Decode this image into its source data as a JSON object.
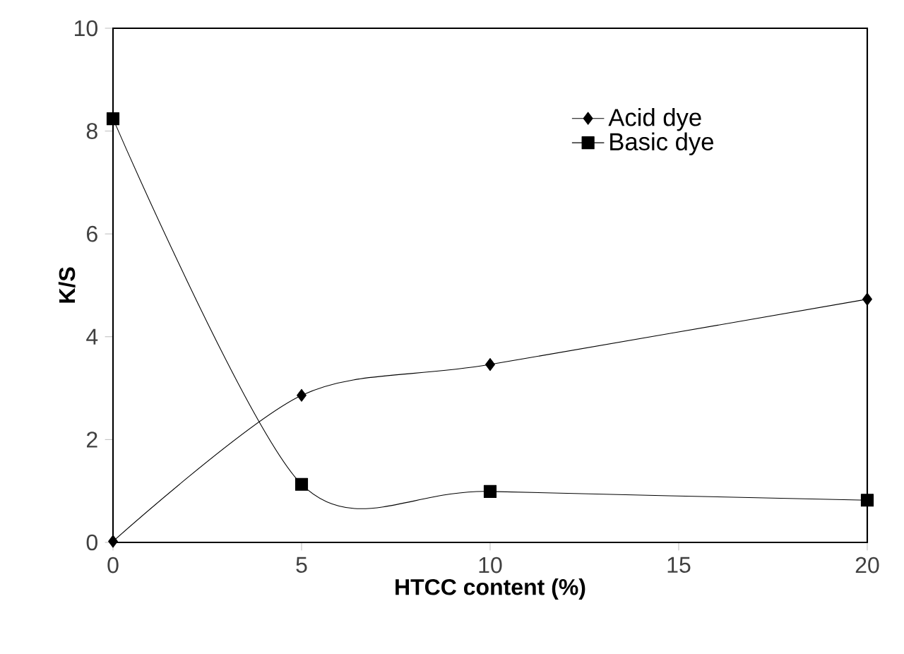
{
  "chart_data": {
    "type": "line",
    "xlabel": "HTCC content (%)",
    "ylabel": "K/S",
    "xlim": [
      0,
      20
    ],
    "ylim": [
      0,
      10
    ],
    "xticks": [
      0,
      5,
      10,
      15,
      20
    ],
    "yticks": [
      0,
      2,
      4,
      6,
      8,
      10
    ],
    "legend": "top right",
    "grid": false,
    "series": [
      {
        "name": "Acid dye",
        "color": "#000000",
        "marker": "diamond",
        "x": [
          0,
          5,
          10,
          20
        ],
        "values": [
          0.02,
          2.86,
          3.46,
          4.73
        ]
      },
      {
        "name": "Basic dye",
        "color": "#000000",
        "marker": "square",
        "x": [
          0,
          5,
          10,
          20
        ],
        "values": [
          8.24,
          1.13,
          0.99,
          0.82
        ]
      }
    ]
  }
}
